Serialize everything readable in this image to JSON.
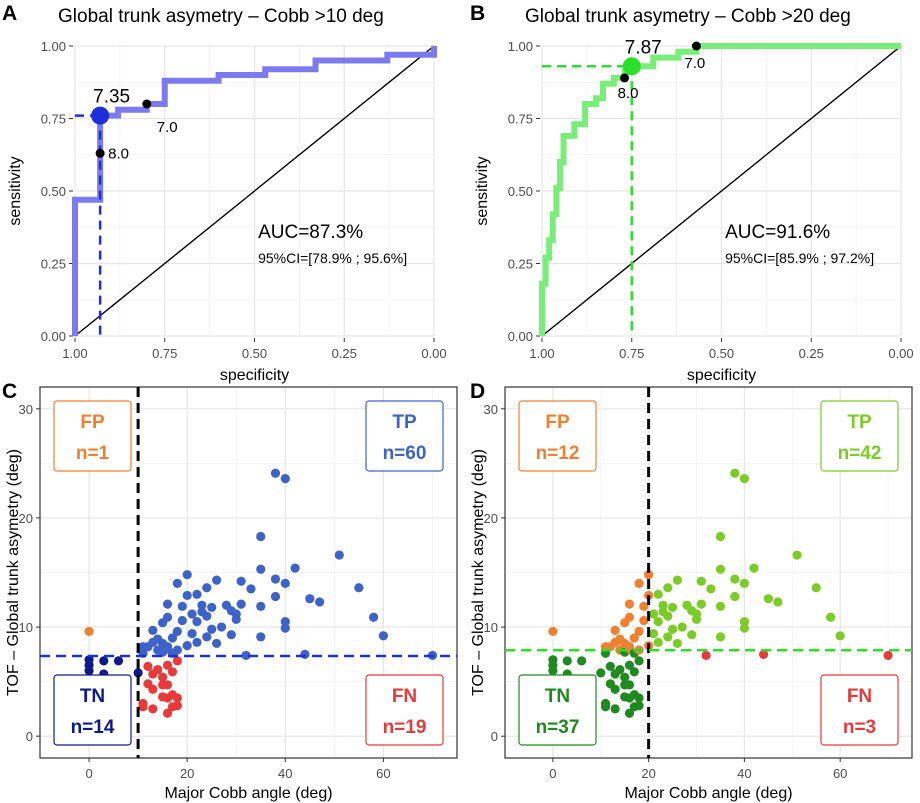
{
  "chart_data": [
    {
      "type": "line",
      "panel_label": "A",
      "title": "Global trunk asymetry – Cobb >10 deg",
      "xlabel": "specificity",
      "ylabel": "sensitivity",
      "xlim": [
        1.0,
        0.0
      ],
      "ylim": [
        0.0,
        1.0
      ],
      "xticks": [
        "1.00",
        "0.75",
        "0.50",
        "0.25",
        "0.00"
      ],
      "yticks": [
        "0.00",
        "0.25",
        "0.50",
        "0.75",
        "1.00"
      ],
      "colors": {
        "curve": "#7b7bef",
        "optimal": "#1d2fd6",
        "diagonal": "#000000"
      },
      "series": [
        {
          "name": "ROC",
          "points": [
            [
              1.0,
              0.0
            ],
            [
              1.0,
              0.47
            ],
            [
              0.93,
              0.47
            ],
            [
              0.93,
              0.63
            ],
            [
              0.93,
              0.76
            ],
            [
              0.88,
              0.76
            ],
            [
              0.88,
              0.78
            ],
            [
              0.8,
              0.78
            ],
            [
              0.8,
              0.8
            ],
            [
              0.75,
              0.8
            ],
            [
              0.75,
              0.88
            ],
            [
              0.6,
              0.88
            ],
            [
              0.6,
              0.9
            ],
            [
              0.47,
              0.9
            ],
            [
              0.47,
              0.92
            ],
            [
              0.33,
              0.92
            ],
            [
              0.33,
              0.95
            ],
            [
              0.13,
              0.95
            ],
            [
              0.13,
              0.97
            ],
            [
              0.0,
              0.97
            ],
            [
              0.0,
              1.0
            ]
          ]
        }
      ],
      "optimal_point": {
        "x": 0.93,
        "y": 0.76,
        "label": "7.35"
      },
      "threshold_points": [
        {
          "x": 0.93,
          "y": 0.63,
          "label": "8.0"
        },
        {
          "x": 0.8,
          "y": 0.8,
          "label": "7.0"
        }
      ],
      "annotations": {
        "auc": "AUC=87.3%",
        "ci": "95%CI=[78.9% ; 95.6%]"
      }
    },
    {
      "type": "line",
      "panel_label": "B",
      "title": "Global trunk asymetry – Cobb >20 deg",
      "xlabel": "specificity",
      "ylabel": "sensitivity",
      "xlim": [
        1.0,
        0.0
      ],
      "ylim": [
        0.0,
        1.0
      ],
      "xticks": [
        "1.00",
        "0.75",
        "0.50",
        "0.25",
        "0.00"
      ],
      "yticks": [
        "0.00",
        "0.25",
        "0.50",
        "0.75",
        "1.00"
      ],
      "colors": {
        "curve": "#78ee78",
        "optimal": "#2be02b",
        "diagonal": "#000000"
      },
      "series": [
        {
          "name": "ROC",
          "points": [
            [
              1.0,
              0.0
            ],
            [
              1.0,
              0.18
            ],
            [
              0.99,
              0.18
            ],
            [
              0.99,
              0.27
            ],
            [
              0.98,
              0.27
            ],
            [
              0.98,
              0.33
            ],
            [
              0.97,
              0.33
            ],
            [
              0.97,
              0.42
            ],
            [
              0.96,
              0.42
            ],
            [
              0.96,
              0.51
            ],
            [
              0.95,
              0.51
            ],
            [
              0.95,
              0.6
            ],
            [
              0.94,
              0.6
            ],
            [
              0.94,
              0.69
            ],
            [
              0.91,
              0.69
            ],
            [
              0.91,
              0.73
            ],
            [
              0.88,
              0.73
            ],
            [
              0.88,
              0.8
            ],
            [
              0.85,
              0.8
            ],
            [
              0.85,
              0.82
            ],
            [
              0.83,
              0.82
            ],
            [
              0.83,
              0.87
            ],
            [
              0.8,
              0.87
            ],
            [
              0.8,
              0.89
            ],
            [
              0.77,
              0.89
            ],
            [
              0.77,
              0.91
            ],
            [
              0.75,
              0.91
            ],
            [
              0.75,
              0.93
            ],
            [
              0.69,
              0.93
            ],
            [
              0.69,
              0.96
            ],
            [
              0.62,
              0.96
            ],
            [
              0.62,
              0.98
            ],
            [
              0.57,
              0.98
            ],
            [
              0.57,
              1.0
            ],
            [
              0.0,
              1.0
            ]
          ]
        }
      ],
      "optimal_point": {
        "x": 0.75,
        "y": 0.93,
        "label": "7.87"
      },
      "threshold_points": [
        {
          "x": 0.77,
          "y": 0.89,
          "label": "8.0"
        },
        {
          "x": 0.57,
          "y": 1.0,
          "label": "7.0"
        }
      ],
      "annotations": {
        "auc": "AUC=91.6%",
        "ci": "95%CI=[85.9% ; 97.2%]"
      }
    },
    {
      "type": "scatter",
      "panel_label": "C",
      "xlabel": "Major Cobb angle (deg)",
      "ylabel": "TOF – Global trunk asymetry (deg)",
      "xlim": [
        -10,
        75
      ],
      "ylim": [
        -2,
        32
      ],
      "xticks": [
        0,
        20,
        40,
        60
      ],
      "yticks": [
        0,
        10,
        20,
        30
      ],
      "cobb_cut": 10,
      "tof_cut": 7.35,
      "colors": {
        "TP": "#3d63c9",
        "FP": "#ef8030",
        "TN": "#0f1a8a",
        "FN": "#e83a3a",
        "tof_line": "#1d2fd6"
      },
      "quadrants": [
        {
          "name": "FP",
          "count": "n=1",
          "pos": "top-left"
        },
        {
          "name": "TP",
          "count": "n=60",
          "pos": "top-right"
        },
        {
          "name": "TN",
          "count": "n=14",
          "pos": "bottom-left"
        },
        {
          "name": "FN",
          "count": "n=19",
          "pos": "bottom-right"
        }
      ],
      "points": [
        [
          0,
          9.6
        ],
        [
          0,
          7.0
        ],
        [
          0,
          6.5
        ],
        [
          0,
          6.0
        ],
        [
          0,
          5.0
        ],
        [
          0,
          4.0
        ],
        [
          0,
          3.5
        ],
        [
          0,
          3.0
        ],
        [
          0,
          2.6
        ],
        [
          3,
          6.9
        ],
        [
          3,
          5.7
        ],
        [
          3,
          3.5
        ],
        [
          6,
          6.9
        ],
        [
          6,
          3.6
        ],
        [
          10,
          5.8
        ],
        [
          11,
          3.0
        ],
        [
          11,
          2.7
        ],
        [
          12,
          6.4
        ],
        [
          12,
          4.8
        ],
        [
          13,
          5.7
        ],
        [
          13,
          4.3
        ],
        [
          13,
          2.5
        ],
        [
          14,
          6.1
        ],
        [
          15,
          5.4
        ],
        [
          15,
          4.7
        ],
        [
          15,
          3.6
        ],
        [
          16,
          6.5
        ],
        [
          16,
          4.7
        ],
        [
          16,
          3.5
        ],
        [
          16,
          2.1
        ],
        [
          17,
          5.9
        ],
        [
          17,
          3.8
        ],
        [
          17,
          2.7
        ],
        [
          18,
          3.5
        ],
        [
          18,
          2.8
        ],
        [
          18,
          6.9
        ],
        [
          32,
          7.4
        ],
        [
          44,
          7.5
        ],
        [
          70,
          7.4
        ],
        [
          11,
          7.6
        ],
        [
          11,
          8.2
        ],
        [
          12,
          8.2
        ],
        [
          13,
          8.6
        ],
        [
          13,
          9.7
        ],
        [
          14,
          7.9
        ],
        [
          14,
          8.9
        ],
        [
          15,
          7.7
        ],
        [
          15,
          8.5
        ],
        [
          15,
          10.4
        ],
        [
          16,
          8.0
        ],
        [
          16,
          8.2
        ],
        [
          16,
          10.9
        ],
        [
          16,
          12.1
        ],
        [
          17,
          7.6
        ],
        [
          17,
          9.0
        ],
        [
          18,
          9.6
        ],
        [
          18,
          7.9
        ],
        [
          18,
          14.0
        ],
        [
          19,
          11.9
        ],
        [
          19,
          10.6
        ],
        [
          20,
          14.8
        ],
        [
          20,
          8.3
        ],
        [
          20,
          12.9
        ],
        [
          21,
          11.2
        ],
        [
          21,
          9.4
        ],
        [
          22,
          10.5
        ],
        [
          22,
          13.0
        ],
        [
          22,
          8.6
        ],
        [
          23,
          11.4
        ],
        [
          23,
          12.0
        ],
        [
          24,
          11.0
        ],
        [
          24,
          13.6
        ],
        [
          24,
          9.1
        ],
        [
          25,
          9.8
        ],
        [
          25,
          11.8
        ],
        [
          26,
          14.3
        ],
        [
          26,
          8.5
        ],
        [
          27,
          10.0
        ],
        [
          28,
          12.0
        ],
        [
          29,
          11.5
        ],
        [
          29,
          9.3
        ],
        [
          30,
          11.2
        ],
        [
          30,
          10.7
        ],
        [
          31,
          12.1
        ],
        [
          31,
          14.2
        ],
        [
          33,
          13.5
        ],
        [
          35,
          18.3
        ],
        [
          35,
          15.3
        ],
        [
          35,
          11.9
        ],
        [
          35,
          9.1
        ],
        [
          38,
          14.4
        ],
        [
          38,
          12.8
        ],
        [
          38,
          24.1
        ],
        [
          40,
          23.6
        ],
        [
          40,
          14.0
        ],
        [
          40,
          10.5
        ],
        [
          40,
          9.9
        ],
        [
          42,
          15.4
        ],
        [
          45,
          12.6
        ],
        [
          47,
          12.3
        ],
        [
          51,
          16.6
        ],
        [
          55,
          13.6
        ],
        [
          58,
          10.9
        ],
        [
          60,
          9.2
        ]
      ]
    },
    {
      "type": "scatter",
      "panel_label": "D",
      "xlabel": "Major Cobb angle (deg)",
      "ylabel": "TOF – Global trunk asymetry (deg)",
      "xlim": [
        -10,
        75
      ],
      "ylim": [
        -2,
        32
      ],
      "xticks": [
        0,
        20,
        40,
        60
      ],
      "yticks": [
        0,
        10,
        20,
        30
      ],
      "cobb_cut": 20,
      "tof_cut": 7.87,
      "colors": {
        "TP": "#7bcc26",
        "FP": "#ef8030",
        "TN": "#1f8a1f",
        "FN": "#e83a3a",
        "tof_line": "#2be02b"
      },
      "quadrants": [
        {
          "name": "FP",
          "count": "n=12",
          "pos": "top-left"
        },
        {
          "name": "TP",
          "count": "n=42",
          "pos": "top-right"
        },
        {
          "name": "TN",
          "count": "n=37",
          "pos": "bottom-left"
        },
        {
          "name": "FN",
          "count": "n=3",
          "pos": "bottom-right"
        }
      ],
      "points": [
        [
          0,
          9.6
        ],
        [
          0,
          7.0
        ],
        [
          0,
          6.5
        ],
        [
          0,
          6.0
        ],
        [
          0,
          5.0
        ],
        [
          0,
          4.0
        ],
        [
          0,
          3.5
        ],
        [
          0,
          3.0
        ],
        [
          0,
          2.6
        ],
        [
          3,
          6.9
        ],
        [
          3,
          5.7
        ],
        [
          3,
          3.5
        ],
        [
          6,
          6.9
        ],
        [
          6,
          3.6
        ],
        [
          10,
          5.8
        ],
        [
          11,
          3.0
        ],
        [
          11,
          2.7
        ],
        [
          12,
          6.4
        ],
        [
          12,
          4.8
        ],
        [
          13,
          5.7
        ],
        [
          13,
          4.3
        ],
        [
          13,
          2.5
        ],
        [
          14,
          6.1
        ],
        [
          15,
          5.4
        ],
        [
          15,
          4.7
        ],
        [
          15,
          3.6
        ],
        [
          16,
          6.5
        ],
        [
          16,
          4.7
        ],
        [
          16,
          3.5
        ],
        [
          16,
          2.1
        ],
        [
          17,
          5.9
        ],
        [
          17,
          3.8
        ],
        [
          17,
          2.7
        ],
        [
          18,
          3.5
        ],
        [
          18,
          2.8
        ],
        [
          18,
          6.9
        ],
        [
          32,
          7.4
        ],
        [
          44,
          7.5
        ],
        [
          70,
          7.4
        ],
        [
          11,
          7.6
        ],
        [
          11,
          8.2
        ],
        [
          12,
          8.2
        ],
        [
          13,
          8.6
        ],
        [
          13,
          9.7
        ],
        [
          14,
          7.9
        ],
        [
          14,
          8.9
        ],
        [
          15,
          7.7
        ],
        [
          15,
          8.5
        ],
        [
          15,
          10.4
        ],
        [
          16,
          8.0
        ],
        [
          16,
          8.2
        ],
        [
          16,
          10.9
        ],
        [
          16,
          12.1
        ],
        [
          17,
          7.6
        ],
        [
          17,
          9.0
        ],
        [
          18,
          9.6
        ],
        [
          18,
          7.9
        ],
        [
          18,
          14.0
        ],
        [
          19,
          11.9
        ],
        [
          19,
          10.6
        ],
        [
          20,
          14.8
        ],
        [
          20,
          8.3
        ],
        [
          20,
          12.9
        ],
        [
          21,
          11.2
        ],
        [
          21,
          9.4
        ],
        [
          22,
          10.5
        ],
        [
          22,
          13.0
        ],
        [
          22,
          8.6
        ],
        [
          23,
          11.4
        ],
        [
          23,
          12.0
        ],
        [
          24,
          11.0
        ],
        [
          24,
          13.6
        ],
        [
          24,
          9.1
        ],
        [
          25,
          9.8
        ],
        [
          25,
          11.8
        ],
        [
          26,
          14.3
        ],
        [
          26,
          8.5
        ],
        [
          27,
          10.0
        ],
        [
          28,
          12.0
        ],
        [
          29,
          11.5
        ],
        [
          29,
          9.3
        ],
        [
          30,
          11.2
        ],
        [
          30,
          10.7
        ],
        [
          31,
          12.1
        ],
        [
          31,
          14.2
        ],
        [
          33,
          13.5
        ],
        [
          35,
          18.3
        ],
        [
          35,
          15.3
        ],
        [
          35,
          11.9
        ],
        [
          35,
          9.1
        ],
        [
          38,
          14.4
        ],
        [
          38,
          12.8
        ],
        [
          38,
          24.1
        ],
        [
          40,
          23.6
        ],
        [
          40,
          14.0
        ],
        [
          40,
          10.5
        ],
        [
          40,
          9.9
        ],
        [
          42,
          15.4
        ],
        [
          45,
          12.6
        ],
        [
          47,
          12.3
        ],
        [
          51,
          16.6
        ],
        [
          55,
          13.6
        ],
        [
          58,
          10.9
        ],
        [
          60,
          9.2
        ]
      ]
    }
  ]
}
